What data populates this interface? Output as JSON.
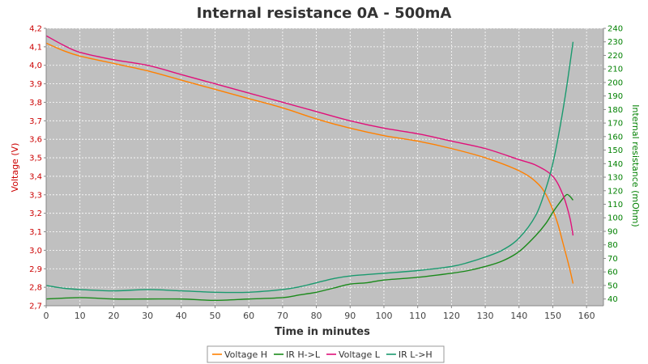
{
  "chart_data": {
    "type": "line",
    "title": "Internal resistance  0A - 500mA",
    "xlabel": "Time in minutes",
    "ylabel_left": "Voltage (V)",
    "ylabel_right": "Internal resistance (mOhm)",
    "xlim": [
      0,
      165
    ],
    "ylim_left": [
      2.7,
      4.2
    ],
    "ylim_right": [
      35,
      240
    ],
    "x_ticks": [
      0,
      10,
      20,
      30,
      40,
      50,
      60,
      70,
      80,
      90,
      100,
      110,
      120,
      130,
      140,
      150,
      160
    ],
    "y_left_ticks": [
      2.7,
      2.8,
      2.9,
      3.0,
      3.1,
      3.2,
      3.3,
      3.4,
      3.5,
      3.6,
      3.7,
      3.8,
      3.9,
      4.0,
      4.1,
      4.2
    ],
    "y_left_tick_labels": [
      "2,7",
      "2,8",
      "2,9",
      "3,0",
      "3,1",
      "3,2",
      "3,3",
      "3,4",
      "3,5",
      "3,6",
      "3,7",
      "3,8",
      "3,9",
      "4,0",
      "4,1",
      "4,2"
    ],
    "y_right_ticks": [
      40,
      50,
      60,
      70,
      80,
      90,
      100,
      110,
      120,
      130,
      140,
      150,
      160,
      170,
      180,
      190,
      200,
      210,
      220,
      230,
      240
    ],
    "grid": true,
    "legend_position": "bottom",
    "colors": {
      "plot_background": "#c0c0c0",
      "grid": "#ffffff",
      "left_axis": "#cc0000",
      "right_axis": "#008000"
    },
    "series": [
      {
        "name": "Voltage H",
        "axis": "left",
        "color": "#ff8000",
        "x": [
          0,
          5,
          10,
          20,
          30,
          40,
          50,
          60,
          70,
          80,
          90,
          100,
          110,
          120,
          130,
          140,
          145,
          148,
          151,
          153,
          155,
          156
        ],
        "y": [
          4.12,
          4.08,
          4.05,
          4.01,
          3.97,
          3.92,
          3.87,
          3.82,
          3.77,
          3.71,
          3.66,
          3.62,
          3.59,
          3.55,
          3.5,
          3.43,
          3.37,
          3.3,
          3.17,
          3.04,
          2.9,
          2.82
        ]
      },
      {
        "name": "IR H->L",
        "axis": "right",
        "color": "#1a8a1a",
        "x": [
          0,
          10,
          20,
          30,
          40,
          50,
          60,
          70,
          75,
          80,
          85,
          90,
          95,
          100,
          110,
          120,
          125,
          130,
          135,
          140,
          145,
          148,
          150,
          152,
          154,
          155,
          156
        ],
        "y": [
          40,
          41,
          40,
          40,
          40,
          39,
          40,
          41,
          43,
          45,
          48,
          51,
          52,
          54,
          56,
          59,
          61,
          64,
          68,
          75,
          87,
          96,
          104,
          111,
          117,
          116,
          113
        ]
      },
      {
        "name": "Voltage L",
        "axis": "left",
        "color": "#e0107a",
        "x": [
          0,
          5,
          10,
          20,
          30,
          40,
          50,
          60,
          70,
          80,
          90,
          100,
          110,
          120,
          130,
          140,
          145,
          150,
          153,
          155,
          156
        ],
        "y": [
          4.16,
          4.11,
          4.07,
          4.03,
          4.0,
          3.95,
          3.9,
          3.85,
          3.8,
          3.75,
          3.7,
          3.66,
          3.63,
          3.59,
          3.55,
          3.49,
          3.46,
          3.4,
          3.3,
          3.18,
          3.08
        ]
      },
      {
        "name": "IR L->H",
        "axis": "right",
        "color": "#1a9a6e",
        "x": [
          0,
          5,
          10,
          20,
          30,
          40,
          50,
          60,
          70,
          75,
          80,
          85,
          90,
          100,
          110,
          120,
          125,
          130,
          135,
          140,
          145,
          148,
          150,
          152,
          154,
          156
        ],
        "y": [
          50,
          48,
          47,
          46,
          47,
          46,
          45,
          45,
          47,
          49,
          52,
          55,
          57,
          59,
          61,
          64,
          67,
          71,
          76,
          85,
          102,
          122,
          140,
          165,
          195,
          230
        ]
      }
    ]
  }
}
